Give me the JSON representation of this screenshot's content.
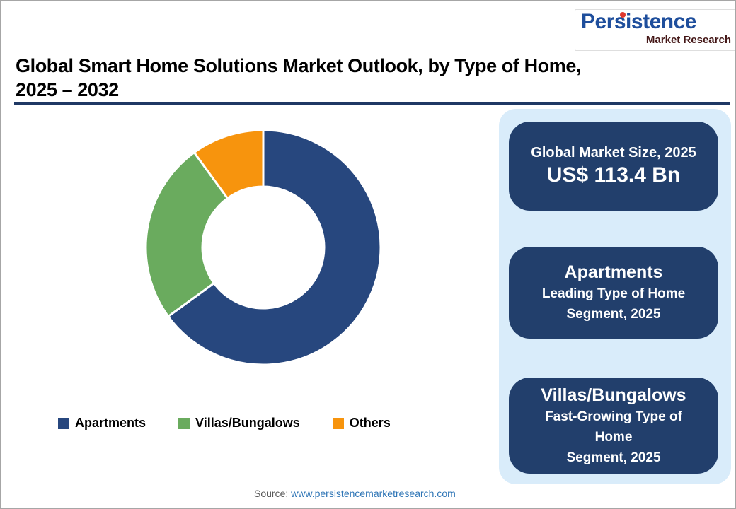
{
  "logo": {
    "brand": "Persistence",
    "subtitle": "Market Research",
    "brand_color": "#1E4E9C",
    "dot_color": "#E0392E",
    "subtitle_color": "#441717"
  },
  "header": {
    "title": "Global Smart Home Solutions Market Outlook, by Type of Home,\n2025 – 2032",
    "rule_color": "#1F3864"
  },
  "chart_data": {
    "type": "pie",
    "subtype": "donut",
    "title": "Global Smart Home Solutions Market Outlook, by Type of Home, 2025 – 2032",
    "categories": [
      "Apartments",
      "Villas/Bungalows",
      "Others"
    ],
    "values": [
      65,
      25,
      10
    ],
    "values_note": "percent shares estimated from arc angles; no data labels shown in image",
    "colors": [
      "#27477E",
      "#6AAB5E",
      "#F7940D"
    ],
    "start_angle_deg": 0,
    "direction": "clockwise",
    "inner_radius_ratio": 0.52,
    "legend_position": "bottom",
    "grid": false
  },
  "panel": {
    "background": "#D9ECFA",
    "card_background": "#223F6C",
    "boxes": [
      {
        "title": "Global Market Size, 2025",
        "value": "US$ 113.4 Bn"
      },
      {
        "title": "Apartments",
        "subtitle": "Leading Type of Home\nSegment, 2025"
      },
      {
        "title": "Villas/Bungalows",
        "subtitle": "Fast-Growing Type of Home\nSegment, 2025"
      }
    ]
  },
  "source": {
    "label": "Source: ",
    "link_text": "www.persistencemarketresearch.com"
  }
}
